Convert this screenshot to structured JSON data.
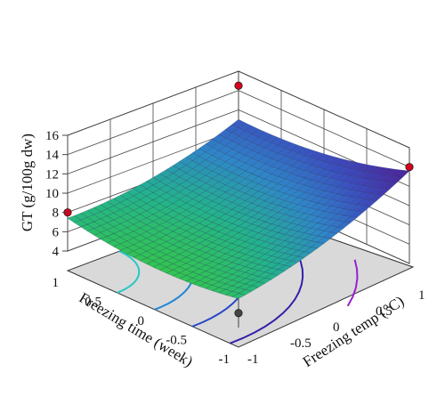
{
  "chart_data": {
    "type": "surface3d",
    "title": "",
    "x_axis": {
      "label": "Freezing time (week)",
      "range": [
        -1,
        1
      ],
      "ticks": [
        "-1",
        "-0.5",
        "0",
        "0.5",
        "1"
      ]
    },
    "y_axis": {
      "label": "Freezing temp (°C)",
      "range": [
        -1,
        1
      ],
      "ticks": [
        "-1",
        "-0.5",
        "0",
        "0.5",
        "1"
      ]
    },
    "z_axis": {
      "label": "GT (g/100g dw)",
      "range": [
        4,
        16
      ],
      "ticks": [
        "4",
        "6",
        "8",
        "10",
        "12",
        "14",
        "16"
      ]
    },
    "surface_corners": [
      {
        "time": 1,
        "temp": -1,
        "gt": 6.6
      },
      {
        "time": -1,
        "temp": -1,
        "gt": 6.2
      },
      {
        "time": -1,
        "temp": 1,
        "gt": 12.8
      },
      {
        "time": 1,
        "temp": 1,
        "gt": 10.2
      }
    ],
    "design_points": [
      {
        "time": 1,
        "temp": -1,
        "gt": 8.0,
        "color": "#d9001b"
      },
      {
        "time": 1,
        "temp": 1,
        "gt": 14.5,
        "color": "#d9001b"
      },
      {
        "time": -1,
        "temp": 1,
        "gt": 14.0,
        "color": "#d9001b"
      },
      {
        "time": -1,
        "temp": -1,
        "gt": 5.5,
        "color": "#444444"
      }
    ],
    "contours": [
      {
        "level": 8,
        "color": "#27c8c8"
      },
      {
        "level": 9,
        "color": "#1e86d8"
      },
      {
        "level": 10,
        "color": "#2547c8"
      },
      {
        "level": 11.5,
        "color": "#3520a8"
      },
      {
        "level": 12.3,
        "color": "#9a1ed0"
      }
    ],
    "floor_color": "#d9d9d9",
    "colormap": [
      "#35c845",
      "#23b38c",
      "#2f86c8",
      "#3b4fbf",
      "#4a2a9e"
    ]
  }
}
